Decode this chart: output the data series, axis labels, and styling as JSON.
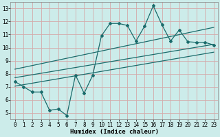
{
  "bg_color": "#ccecea",
  "grid_color": "#d4aaaa",
  "line_color": "#1a6b6b",
  "xlabel": "Humidex (Indice chaleur)",
  "xlim": [
    -0.5,
    23.5
  ],
  "ylim": [
    4.5,
    13.5
  ],
  "yticks": [
    5,
    6,
    7,
    8,
    9,
    10,
    11,
    12,
    13
  ],
  "xticks": [
    0,
    1,
    2,
    3,
    4,
    5,
    6,
    7,
    8,
    9,
    10,
    11,
    12,
    13,
    14,
    15,
    16,
    17,
    18,
    19,
    20,
    21,
    22,
    23
  ],
  "curve_x": [
    0,
    1,
    2,
    3,
    4,
    5,
    6,
    7,
    8,
    9,
    10,
    11,
    12,
    13,
    14,
    15,
    16,
    17,
    18,
    19,
    20,
    21,
    22,
    23
  ],
  "curve_y": [
    7.4,
    7.0,
    6.6,
    6.6,
    5.2,
    5.3,
    4.8,
    7.9,
    6.5,
    7.9,
    10.9,
    11.85,
    11.85,
    11.7,
    10.5,
    11.65,
    13.2,
    11.75,
    10.5,
    11.35,
    10.45,
    10.4,
    10.4,
    10.2
  ],
  "line1_x": [
    0,
    23
  ],
  "line1_y": [
    7.7,
    10.25
  ],
  "line2_x": [
    0,
    23
  ],
  "line2_y": [
    8.35,
    11.55
  ],
  "line3_x": [
    0,
    23
  ],
  "line3_y": [
    7.05,
    9.65
  ]
}
